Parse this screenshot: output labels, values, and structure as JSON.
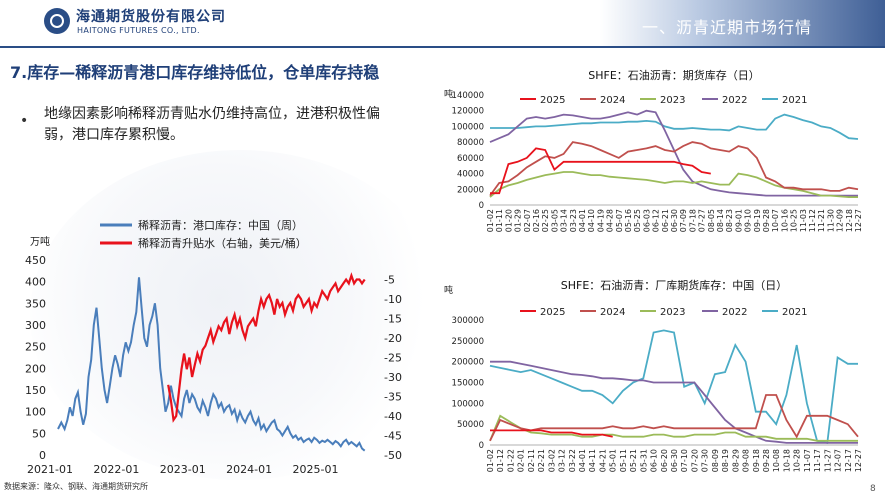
{
  "header": {
    "logo_cn": "海通期货股份有限公司",
    "logo_en": "HAITONG FUTURES CO., LTD.",
    "section_title": "一、沥青近期市场行情"
  },
  "page_heading": "7.库存—稀释沥青港口库存维持低位，仓单库存持稳",
  "bullet": "地缘因素影响稀释沥青贴水仍维持高位，进港积极性偏弱，港口库存累积慢。",
  "source_note": "数据来源：隆众、钢联、海通期货研究所",
  "page_number": "8",
  "colors": {
    "brand": "#1f3f78",
    "left_series": "#4a7ebb",
    "right_series": "#e8121c"
  },
  "chart_data": [
    {
      "type": "line",
      "title": "",
      "yunit_left": "万吨",
      "legend": [
        "稀释沥青：港口库存：中国（周）",
        "稀释沥青升贴水（右轴，美元/桶）"
      ],
      "x_ticks": [
        "2021-01",
        "2022-01",
        "2023-01",
        "2024-01",
        "2025-01"
      ],
      "ylim_left": [
        0,
        450
      ],
      "yticks_left": [
        0,
        50,
        100,
        150,
        200,
        250,
        300,
        350,
        400,
        450
      ],
      "ylim_right": [
        -50,
        0
      ],
      "yticks_right": [
        -5,
        -10,
        -15,
        -20,
        -25,
        -30,
        -35,
        -40,
        -45,
        -50
      ],
      "series": [
        {
          "name": "稀释沥青：港口库存：中国（周）",
          "axis": "left",
          "t": [
            0,
            0.05,
            0.1,
            0.14,
            0.18,
            0.22,
            0.26,
            0.3,
            0.34,
            0.38,
            0.42,
            0.46,
            0.5,
            0.54,
            0.58,
            0.62,
            0.66,
            0.7,
            0.74,
            0.78,
            0.82,
            0.86,
            0.9,
            0.94,
            0.98,
            1.02,
            1.06,
            1.1,
            1.14,
            1.18,
            1.22,
            1.26,
            1.3,
            1.34,
            1.38,
            1.42,
            1.46,
            1.5,
            1.54,
            1.58,
            1.62,
            1.66,
            1.7,
            1.74,
            1.78,
            1.82,
            1.86,
            1.9,
            1.94,
            1.98,
            2.02,
            2.06,
            2.1,
            2.14,
            2.18,
            2.22,
            2.26,
            2.3,
            2.34,
            2.38,
            2.42,
            2.46,
            2.5,
            2.54,
            2.58,
            2.62,
            2.66,
            2.7,
            2.74,
            2.78,
            2.82,
            2.86,
            2.9,
            2.94,
            2.98,
            3.02,
            3.06,
            3.1,
            3.14,
            3.18,
            3.22,
            3.26,
            3.3,
            3.34,
            3.38,
            3.42,
            3.46,
            3.5,
            3.54,
            3.58,
            3.62,
            3.66,
            3.7,
            3.74,
            3.78,
            3.82,
            3.86,
            3.9,
            3.94,
            3.98,
            4.02,
            4.06,
            4.1,
            4.14,
            4.18,
            4.22,
            4.26,
            4.3,
            4.34,
            4.38,
            4.42,
            4.46,
            4.5,
            4.54,
            4.58,
            4.62
          ],
          "values": [
            60,
            75,
            60,
            80,
            110,
            90,
            130,
            145,
            100,
            70,
            95,
            180,
            220,
            300,
            340,
            270,
            200,
            150,
            120,
            160,
            200,
            230,
            210,
            180,
            230,
            260,
            240,
            260,
            300,
            330,
            410,
            340,
            270,
            250,
            300,
            320,
            350,
            300,
            200,
            150,
            100,
            120,
            160,
            130,
            110,
            100,
            90,
            130,
            150,
            120,
            140,
            130,
            110,
            100,
            125,
            110,
            90,
            120,
            140,
            130,
            110,
            120,
            100,
            110,
            115,
            95,
            105,
            80,
            100,
            85,
            75,
            90,
            100,
            80,
            70,
            85,
            60,
            70,
            55,
            65,
            75,
            80,
            60,
            55,
            45,
            55,
            65,
            50,
            40,
            45,
            35,
            40,
            30,
            35,
            38,
            30,
            40,
            35,
            28,
            33,
            30,
            35,
            30,
            25,
            32,
            28,
            20,
            30,
            35,
            25,
            30,
            25,
            20,
            28,
            15,
            10
          ]
        },
        {
          "name": "稀释沥青升贴水（右轴，美元/桶）",
          "axis": "right",
          "t": [
            1.66,
            1.7,
            1.74,
            1.78,
            1.82,
            1.86,
            1.9,
            1.94,
            1.98,
            2.02,
            2.06,
            2.1,
            2.14,
            2.18,
            2.22,
            2.26,
            2.3,
            2.34,
            2.38,
            2.42,
            2.46,
            2.5,
            2.54,
            2.58,
            2.62,
            2.66,
            2.7,
            2.74,
            2.78,
            2.82,
            2.86,
            2.9,
            2.94,
            2.98,
            3.02,
            3.06,
            3.1,
            3.14,
            3.18,
            3.22,
            3.26,
            3.3,
            3.34,
            3.38,
            3.42,
            3.46,
            3.5,
            3.54,
            3.58,
            3.62,
            3.66,
            3.7,
            3.74,
            3.78,
            3.82,
            3.86,
            3.9,
            3.94,
            3.98,
            4.02,
            4.06,
            4.1,
            4.14,
            4.18,
            4.22,
            4.26,
            4.3,
            4.34,
            4.38,
            4.42,
            4.46,
            4.5,
            4.54,
            4.58,
            4.62
          ],
          "values": [
            -32,
            -36,
            -41,
            -40,
            -34,
            -28,
            -24,
            -28,
            -25,
            -30,
            -27,
            -24,
            -26,
            -23,
            -22,
            -20,
            -18,
            -21,
            -19,
            -17,
            -18,
            -16,
            -15,
            -19,
            -16,
            -14,
            -17,
            -15,
            -18,
            -20,
            -17,
            -16,
            -15,
            -17,
            -13,
            -10,
            -12,
            -10,
            -9,
            -11,
            -14,
            -10,
            -12,
            -11,
            -14,
            -12,
            -11,
            -13,
            -10,
            -9,
            -10,
            -12,
            -11,
            -10,
            -13,
            -11,
            -12,
            -10,
            -8,
            -9,
            -10,
            -8,
            -7,
            -6,
            -8,
            -7,
            -6,
            -5,
            -6,
            -4,
            -6,
            -5,
            -5,
            -6,
            -5
          ]
        }
      ]
    },
    {
      "type": "line",
      "title": "SHFE：石油沥青：期货库存（日）",
      "yunit": "吨",
      "ylim": [
        0,
        140000
      ],
      "yticks": [
        0,
        20000,
        40000,
        60000,
        80000,
        100000,
        120000,
        140000
      ],
      "x_ticks": [
        "01-02",
        "01-11",
        "01-20",
        "01-29",
        "02-07",
        "02-16",
        "02-25",
        "03-05",
        "03-14",
        "03-23",
        "04-01",
        "04-10",
        "04-19",
        "04-28",
        "05-07",
        "05-16",
        "05-25",
        "06-03",
        "06-12",
        "06-21",
        "06-30",
        "07-09",
        "07-18",
        "07-27",
        "08-05",
        "08-14",
        "08-23",
        "09-01",
        "09-10",
        "09-19",
        "09-28",
        "10-07",
        "10-16",
        "10-25",
        "11-03",
        "11-12",
        "11-21",
        "11-30",
        "12-09",
        "12-18",
        "12-27"
      ],
      "series": [
        {
          "name": "2025",
          "color": "#e8121c",
          "values": [
            15000,
            15000,
            52000,
            55000,
            60000,
            72000,
            70000,
            45000,
            55000,
            55000,
            55000,
            55000,
            55000,
            55000,
            55000,
            55000,
            55000,
            55000,
            55000,
            55000,
            55000,
            52000,
            50000,
            42000,
            40000
          ]
        },
        {
          "name": "2024",
          "color": "#c0504d",
          "values": [
            12000,
            28000,
            30000,
            38000,
            48000,
            55000,
            62000,
            60000,
            65000,
            80000,
            78000,
            75000,
            70000,
            65000,
            60000,
            68000,
            70000,
            72000,
            75000,
            70000,
            68000,
            75000,
            80000,
            78000,
            72000,
            70000,
            68000,
            75000,
            72000,
            60000,
            35000,
            30000,
            22000,
            22000,
            20000,
            20000,
            20000,
            18000,
            18000,
            22000,
            20000
          ]
        },
        {
          "name": "2023",
          "color": "#9bbb59",
          "values": [
            10000,
            20000,
            25000,
            28000,
            32000,
            35000,
            38000,
            40000,
            42000,
            42000,
            40000,
            38000,
            38000,
            36000,
            35000,
            34000,
            33000,
            32000,
            30000,
            28000,
            30000,
            30000,
            28000,
            30000,
            28000,
            26000,
            26000,
            40000,
            38000,
            35000,
            30000,
            25000,
            22000,
            20000,
            18000,
            15000,
            12000,
            12000,
            11000,
            10000,
            10000
          ]
        },
        {
          "name": "2022",
          "color": "#8064a2",
          "values": [
            80000,
            85000,
            90000,
            100000,
            110000,
            112000,
            110000,
            112000,
            115000,
            114000,
            112000,
            110000,
            110000,
            112000,
            115000,
            118000,
            115000,
            120000,
            118000,
            95000,
            70000,
            45000,
            30000,
            25000,
            20000,
            18000,
            16000,
            15000,
            14000,
            13000,
            12000,
            12000,
            12000,
            12000,
            12000,
            12000,
            12000,
            12000,
            12000,
            12000,
            12000
          ]
        },
        {
          "name": "2021",
          "color": "#4bacc6",
          "values": [
            98000,
            98000,
            98000,
            98000,
            99000,
            100000,
            100000,
            101000,
            102000,
            103000,
            104000,
            104000,
            105000,
            105000,
            105000,
            106000,
            106000,
            107000,
            106000,
            100000,
            97000,
            97000,
            98000,
            97000,
            96000,
            96000,
            95000,
            100000,
            98000,
            96000,
            96000,
            110000,
            115000,
            112000,
            108000,
            105000,
            100000,
            98000,
            92000,
            85000,
            84000
          ]
        }
      ]
    },
    {
      "type": "line",
      "title": "SHFE：石油沥青：厂库期货库存：中国（日）",
      "yunit": "吨",
      "ylim": [
        0,
        300000
      ],
      "yticks": [
        0,
        50000,
        100000,
        150000,
        200000,
        250000,
        300000
      ],
      "x_ticks": [
        "01-02",
        "01-12",
        "01-22",
        "02-01",
        "02-11",
        "02-21",
        "03-02",
        "03-12",
        "03-22",
        "04-01",
        "04-11",
        "04-21",
        "05-01",
        "05-11",
        "05-21",
        "05-31",
        "06-10",
        "06-20",
        "06-30",
        "07-10",
        "07-20",
        "07-30",
        "08-09",
        "08-19",
        "08-29",
        "09-08",
        "09-18",
        "09-28",
        "10-08",
        "10-18",
        "10-28",
        "11-07",
        "11-17",
        "11-27",
        "12-07",
        "12-17",
        "12-27"
      ],
      "series": [
        {
          "name": "2025",
          "color": "#e8121c",
          "values": [
            35000,
            35000,
            35000,
            35000,
            35000,
            35000,
            30000,
            30000,
            30000,
            25000,
            25000,
            25000,
            20000
          ]
        },
        {
          "name": "2024",
          "color": "#c0504d",
          "values": [
            10000,
            60000,
            50000,
            40000,
            35000,
            40000,
            40000,
            40000,
            40000,
            40000,
            40000,
            40000,
            45000,
            40000,
            40000,
            45000,
            40000,
            45000,
            40000,
            40000,
            40000,
            40000,
            40000,
            40000,
            40000,
            40000,
            40000,
            120000,
            120000,
            60000,
            20000,
            70000,
            70000,
            70000,
            60000,
            50000,
            20000
          ]
        },
        {
          "name": "2023",
          "color": "#9bbb59",
          "values": [
            10000,
            70000,
            55000,
            40000,
            30000,
            28000,
            25000,
            25000,
            25000,
            20000,
            20000,
            25000,
            25000,
            20000,
            20000,
            20000,
            25000,
            25000,
            20000,
            20000,
            25000,
            25000,
            25000,
            30000,
            30000,
            20000,
            20000,
            20000,
            15000,
            15000,
            15000,
            15000,
            10000,
            10000,
            10000,
            10000,
            10000
          ]
        },
        {
          "name": "2022",
          "color": "#8064a2",
          "values": [
            200000,
            200000,
            200000,
            195000,
            190000,
            185000,
            180000,
            175000,
            170000,
            168000,
            165000,
            160000,
            160000,
            158000,
            155000,
            155000,
            150000,
            150000,
            150000,
            150000,
            150000,
            120000,
            90000,
            60000,
            40000,
            30000,
            20000,
            10000,
            8000,
            5000,
            5000,
            5000,
            5000,
            5000,
            5000,
            5000,
            5000
          ]
        },
        {
          "name": "2021",
          "color": "#4bacc6",
          "values": [
            190000,
            185000,
            180000,
            175000,
            180000,
            170000,
            160000,
            150000,
            140000,
            130000,
            130000,
            120000,
            100000,
            130000,
            150000,
            160000,
            270000,
            275000,
            270000,
            140000,
            150000,
            100000,
            170000,
            175000,
            240000,
            200000,
            80000,
            80000,
            50000,
            120000,
            240000,
            100000,
            10000,
            5000,
            210000,
            195000,
            195000
          ]
        }
      ]
    }
  ]
}
